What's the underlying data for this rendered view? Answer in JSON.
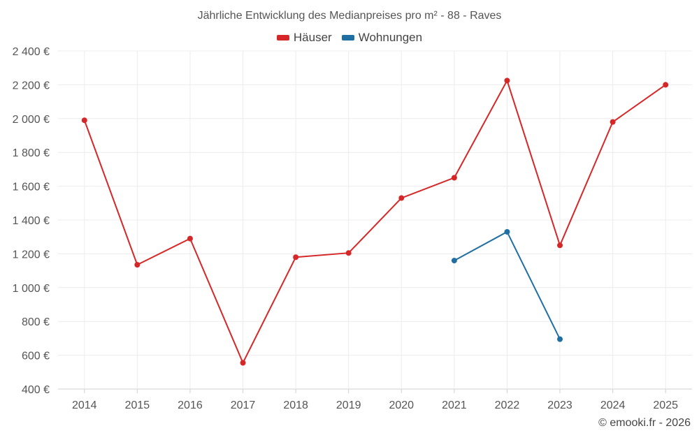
{
  "chart_data": {
    "type": "line",
    "title": "Jährliche Entwicklung des Medianpreises pro m² - 88 - Raves",
    "categories": [
      "2014",
      "2015",
      "2016",
      "2017",
      "2018",
      "2019",
      "2020",
      "2021",
      "2022",
      "2023",
      "2024",
      "2025"
    ],
    "series": [
      {
        "name": "Häuser",
        "color": "#d62728",
        "values": [
          1990,
          1135,
          1290,
          555,
          1180,
          1205,
          1530,
          1650,
          2225,
          1250,
          1980,
          2200
        ]
      },
      {
        "name": "Wohnungen",
        "color": "#1f6fa3",
        "values": [
          null,
          null,
          null,
          null,
          null,
          null,
          null,
          1160,
          1330,
          695,
          null,
          null
        ]
      }
    ],
    "ylim": [
      400,
      2400
    ],
    "yticks": [
      "400 €",
      "600 €",
      "800 €",
      "1 000 €",
      "1 200 €",
      "1 400 €",
      "1 600 €",
      "1 800 €",
      "2 000 €",
      "2 200 €",
      "2 400 €"
    ],
    "grid": true,
    "legend_position": "top-center"
  },
  "credit": "© emooki.fr - 2026"
}
